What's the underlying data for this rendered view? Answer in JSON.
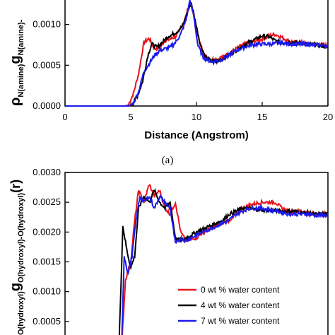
{
  "chart_data": [
    {
      "type": "line",
      "panel_label": "(a)",
      "xlabel": "Distance (Angstrom)",
      "ylabel_main": "ρ",
      "ylabel_sub1": "N(amine)",
      "ylabel_g": "g",
      "ylabel_sub2": "N(amine)-",
      "xlim": [
        0,
        20
      ],
      "ylim": [
        0,
        0.0013
      ],
      "xticks": [
        0,
        5,
        10,
        15,
        20
      ],
      "xtick_labels": [
        "0",
        "5",
        "10",
        "15",
        "20"
      ],
      "yticks": [
        0,
        0.0005,
        0.001
      ],
      "ytick_labels": [
        "0.0000",
        "0.0005",
        "0.0010"
      ],
      "grid": false,
      "series": [
        {
          "color": "#e8141c",
          "x": [
            0,
            4.5,
            4.8,
            5.2,
            5.6,
            6.0,
            6.4,
            6.8,
            7.2,
            7.6,
            8.0,
            8.4,
            8.8,
            9.2,
            9.5,
            9.8,
            10.2,
            10.6,
            11.0,
            11.5,
            12.0,
            12.5,
            13.0,
            13.5,
            14.0,
            14.5,
            15.0,
            15.5,
            16.0,
            16.5,
            17.0,
            17.5,
            18.0,
            18.5,
            19.0,
            19.5,
            20.0
          ],
          "y": [
            0,
            0,
            1e-05,
            0.00015,
            0.0004,
            0.00078,
            0.00083,
            0.0007,
            0.00072,
            0.0008,
            0.00082,
            0.00085,
            0.00095,
            0.0011,
            0.00128,
            0.0011,
            0.0008,
            0.00062,
            0.00058,
            0.00057,
            0.0006,
            0.00065,
            0.0007,
            0.00075,
            0.00078,
            0.0008,
            0.00082,
            0.00086,
            0.00088,
            0.00084,
            0.0008,
            0.00078,
            0.00078,
            0.00076,
            0.00076,
            0.00075,
            0.00074
          ]
        },
        {
          "color": "#000000",
          "x": [
            0,
            4.8,
            5.1,
            5.5,
            5.9,
            6.3,
            6.6,
            7.0,
            7.4,
            7.8,
            8.2,
            8.6,
            9.0,
            9.3,
            9.6,
            9.9,
            10.3,
            10.7,
            11.1,
            11.6,
            12.0,
            12.5,
            13.0,
            13.5,
            14.0,
            14.5,
            15.0,
            15.5,
            16.0,
            16.5,
            17.0,
            17.5,
            18.0,
            18.5,
            19.0,
            19.5,
            20.0
          ],
          "y": [
            0,
            0,
            2e-05,
            0.00012,
            0.0003,
            0.00062,
            0.00076,
            0.00072,
            0.00078,
            0.00085,
            0.00088,
            0.00092,
            0.001,
            0.00115,
            0.00127,
            0.00105,
            0.00075,
            0.0006,
            0.00055,
            0.00055,
            0.00058,
            0.00063,
            0.00068,
            0.00074,
            0.00078,
            0.00082,
            0.00086,
            0.00085,
            0.0008,
            0.00078,
            0.00078,
            0.00078,
            0.00077,
            0.00076,
            0.00075,
            0.00074,
            0.00072
          ]
        },
        {
          "color": "#1a1aee",
          "x": [
            0,
            4.8,
            5.2,
            5.6,
            6.0,
            6.4,
            6.8,
            7.2,
            7.6,
            8.0,
            8.4,
            8.8,
            9.2,
            9.5,
            9.8,
            10.1,
            10.5,
            10.9,
            11.3,
            11.8,
            12.3,
            12.8,
            13.3,
            13.8,
            14.3,
            14.8,
            15.3,
            15.8,
            16.3,
            16.8,
            17.3,
            17.8,
            18.3,
            18.8,
            19.3,
            20.0
          ],
          "y": [
            0,
            0,
            3e-05,
            0.00018,
            0.00042,
            0.00052,
            0.00062,
            0.00068,
            0.0007,
            0.00072,
            0.00078,
            0.00088,
            0.00105,
            0.0013,
            0.0011,
            0.00075,
            0.0006,
            0.00056,
            0.00054,
            0.00056,
            0.0006,
            0.00066,
            0.0007,
            0.00073,
            0.00075,
            0.00076,
            0.00076,
            0.00076,
            0.00078,
            0.00077,
            0.00076,
            0.00076,
            0.00076,
            0.00075,
            0.00075,
            0.00074
          ]
        }
      ]
    },
    {
      "type": "line",
      "ylabel_main": "g",
      "ylabel_sub": "O(hydroxyl)-O(hydroxyl)",
      "ylabel_suffix": "(r)",
      "ylabel_prefix_sub": "O(hydroxyl)",
      "xlim": [
        0,
        20
      ],
      "ylim": [
        0,
        0.003
      ],
      "yticks": [
        0.0005,
        0.001,
        0.0015,
        0.002,
        0.0025,
        0.003
      ],
      "ytick_labels": [
        "0.0005",
        "0.0010",
        "0.0015",
        "0.0020",
        "0.0025",
        "0.0030"
      ],
      "grid": false,
      "legend_position": "bottom-right",
      "series": [
        {
          "name": "0 wt % water content",
          "color": "#e8141c",
          "x": [
            4.3,
            4.6,
            5.0,
            5.3,
            5.6,
            6.0,
            6.4,
            6.8,
            7.2,
            7.6,
            8.0,
            8.4,
            8.8,
            9.2,
            9.6,
            10.0,
            10.5,
            11.0,
            11.5,
            12.0,
            12.5,
            13.0,
            13.5,
            14.0,
            14.5,
            15.0,
            15.5,
            16.0,
            16.5,
            17.0,
            17.5,
            18.0,
            18.5,
            19.0,
            19.5,
            20.0
          ],
          "y": [
            5e-05,
            0.0012,
            0.0015,
            0.0022,
            0.0027,
            0.0025,
            0.0028,
            0.0026,
            0.0027,
            0.0024,
            0.0023,
            0.0025,
            0.002,
            0.00185,
            0.0019,
            0.0019,
            0.002,
            0.00205,
            0.0021,
            0.00215,
            0.0022,
            0.0023,
            0.0024,
            0.00245,
            0.00248,
            0.0025,
            0.0025,
            0.0025,
            0.0024,
            0.00235,
            0.00235,
            0.00235,
            0.00232,
            0.0023,
            0.0023,
            0.0023
          ]
        },
        {
          "name": "4 wt % water content",
          "color": "#000000",
          "x": [
            4.1,
            4.4,
            4.7,
            5.0,
            5.3,
            5.6,
            6.0,
            6.4,
            6.8,
            7.2,
            7.6,
            8.0,
            8.4,
            8.8,
            9.2,
            9.6,
            10.0,
            10.5,
            11.0,
            11.5,
            12.0,
            12.5,
            13.0,
            13.5,
            14.0,
            14.5,
            15.0,
            15.5,
            16.0,
            16.5,
            17.0,
            17.5,
            18.0,
            18.5,
            19.0,
            19.5,
            20.0
          ],
          "y": [
            5e-05,
            0.0021,
            0.0017,
            0.0014,
            0.0016,
            0.0024,
            0.0026,
            0.0025,
            0.0027,
            0.0025,
            0.0024,
            0.0025,
            0.0019,
            0.00185,
            0.0019,
            0.00195,
            0.002,
            0.00205,
            0.0021,
            0.00215,
            0.0022,
            0.0023,
            0.00235,
            0.0024,
            0.0024,
            0.00238,
            0.00237,
            0.00236,
            0.00236,
            0.00235,
            0.00235,
            0.00235,
            0.00233,
            0.00232,
            0.0023,
            0.0023,
            0.0023
          ]
        },
        {
          "name": "7 wt % water content",
          "color": "#1a1aee",
          "x": [
            4.3,
            4.5,
            4.8,
            5.1,
            5.4,
            5.7,
            6.0,
            6.4,
            6.8,
            7.2,
            7.6,
            8.0,
            8.4,
            8.8,
            9.2,
            9.6,
            10.0,
            10.5,
            11.0,
            11.5,
            12.0,
            12.5,
            13.0,
            13.5,
            14.0,
            14.5,
            15.0,
            15.5,
            16.0,
            16.5,
            17.0,
            17.5,
            18.0,
            18.5,
            19.0,
            19.5,
            20.0
          ],
          "y": [
            5e-05,
            0.0016,
            0.0013,
            0.0016,
            0.0022,
            0.0026,
            0.0025,
            0.0026,
            0.0024,
            0.0026,
            0.0025,
            0.0024,
            0.0018,
            0.0019,
            0.00185,
            0.0019,
            0.00195,
            0.002,
            0.00205,
            0.0021,
            0.00215,
            0.0022,
            0.0023,
            0.00235,
            0.0024,
            0.0024,
            0.0024,
            0.00238,
            0.00236,
            0.00233,
            0.0023,
            0.0023,
            0.0023,
            0.0023,
            0.00228,
            0.00228,
            0.00228
          ]
        }
      ]
    }
  ]
}
